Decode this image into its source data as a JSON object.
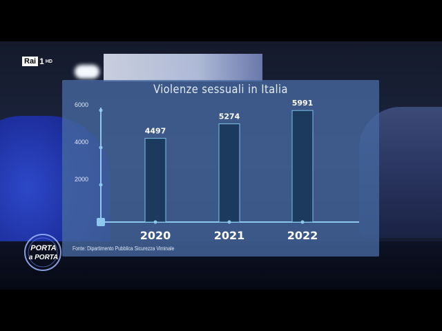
{
  "broadcaster": {
    "rai_label": "Rai",
    "channel_number": "1",
    "hd_label": "HD"
  },
  "show_logo": {
    "line1": "PORTA",
    "line2": "a PORTA"
  },
  "source_note": "Fonte: Dipartimento Pubblica Sicurezza Viminale",
  "colors": {
    "panel": "#4669a0",
    "bar_fill": "#1b3a5e",
    "bar_stroke": "#7fc0e8",
    "axis": "#8ec8ee"
  },
  "chart_data": {
    "type": "bar",
    "title": "Violenze sessuali in Italia",
    "categories": [
      "2020",
      "2021",
      "2022"
    ],
    "values": [
      4497,
      5274,
      5991
    ],
    "data_labels": [
      "4497",
      "5274",
      "5991"
    ],
    "yticks": [
      2000,
      4000,
      6000
    ],
    "ytick_labels": [
      "2000",
      "4000",
      "6000"
    ],
    "ylim": [
      0,
      6000
    ],
    "xlabel": "",
    "ylabel": "",
    "grid": false,
    "legend": "none"
  }
}
